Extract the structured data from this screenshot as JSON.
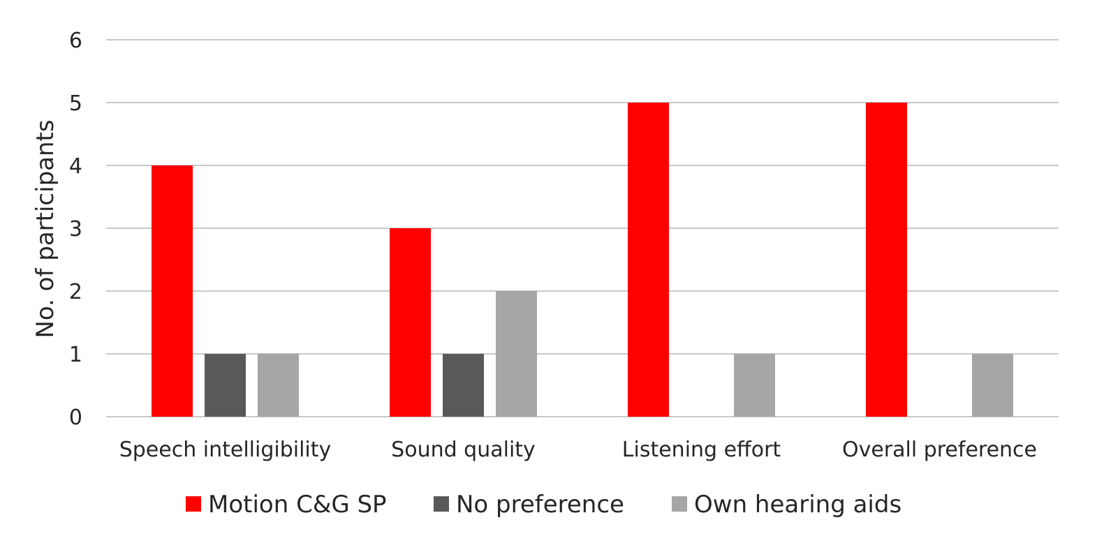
{
  "chart_data": {
    "type": "bar",
    "title": "",
    "xlabel": "",
    "ylabel": "No. of participants",
    "ylim": [
      0,
      6
    ],
    "yticks": [
      0,
      1,
      2,
      3,
      4,
      5,
      6
    ],
    "grid": true,
    "legend_position": "bottom",
    "categories": [
      "Speech intelligibility",
      "Sound quality",
      "Listening effort",
      "Overall preference"
    ],
    "series": [
      {
        "name": "Motion C&G SP",
        "color": "#ff0000",
        "values": [
          4,
          3,
          5,
          5
        ]
      },
      {
        "name": "No preference",
        "color": "#595959",
        "values": [
          1,
          1,
          0,
          0
        ]
      },
      {
        "name": "Own hearing aids",
        "color": "#a6a6a6",
        "values": [
          1,
          2,
          1,
          1
        ]
      }
    ]
  }
}
